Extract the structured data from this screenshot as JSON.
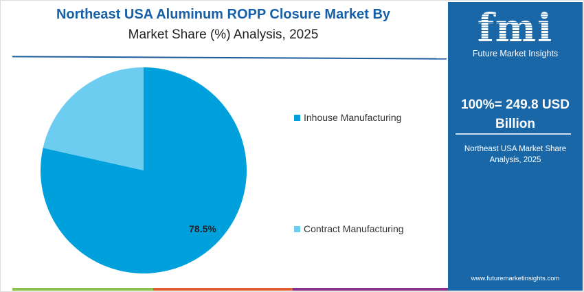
{
  "chart_data": {
    "type": "pie",
    "title": "Northeast USA Aluminum ROPP Closure Market By",
    "subtitle": "Market Share (%) Analysis, 2025",
    "slices": [
      {
        "label": "Inhouse Manufacturing",
        "value": 78.5,
        "color": "#00a0dc",
        "data_label": "78.5%"
      },
      {
        "label": "Contract Manufacturing",
        "value": 21.5,
        "color": "#6dcdf0"
      }
    ],
    "legend_position": "right"
  },
  "panel": {
    "logo_text": "fmi",
    "logo_subtitle": "Future Market Insights",
    "total": "100%= 249.8 USD Billion",
    "subtitle": "Northeast USA Market Share Analysis, 2025",
    "url": "www.futuremarketinsights.com"
  },
  "colors": {
    "panel": "#1a67a8",
    "title": "#1560a8",
    "bar_green": "#8cc04a",
    "bar_orange": "#e2602f",
    "bar_purple": "#8a2f8a"
  }
}
